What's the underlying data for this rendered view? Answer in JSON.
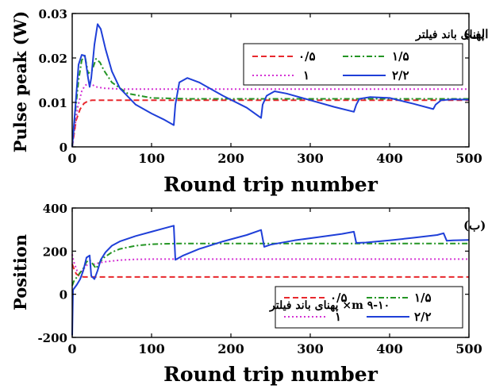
{
  "chart_data": [
    {
      "type": "line",
      "panel_label": "(الف)",
      "xlabel": "Round trip number",
      "ylabel": "Pulse peak (W)",
      "xlim": [
        0,
        500
      ],
      "ylim": [
        0,
        0.03
      ],
      "xticks": [
        "0",
        "100",
        "200",
        "300",
        "400",
        "500"
      ],
      "yticks": [
        "0",
        "0.01",
        "0.02",
        "0.03"
      ],
      "grid": false,
      "legend_title": "m ۹-۱۰× پهنای باند فیلتر",
      "legend_location": "upper-right",
      "series": [
        {
          "name": "۰/۵",
          "color": "#e8282d",
          "dash": "dashed",
          "x": [
            0,
            2,
            5,
            10,
            15,
            20,
            25,
            30,
            40,
            60,
            100,
            200,
            300,
            400,
            500
          ],
          "y": [
            0,
            0.0025,
            0.006,
            0.0085,
            0.0098,
            0.0103,
            0.0105,
            0.0105,
            0.0105,
            0.0105,
            0.0105,
            0.0105,
            0.0105,
            0.0105,
            0.0105
          ]
        },
        {
          "name": "۱",
          "color": "#d433d4",
          "dash": "dotted",
          "x": [
            0,
            3,
            7,
            12,
            16,
            20,
            25,
            30,
            40,
            60,
            100,
            200,
            300,
            400,
            500
          ],
          "y": [
            0,
            0.004,
            0.009,
            0.0125,
            0.0138,
            0.0142,
            0.014,
            0.0135,
            0.0132,
            0.013,
            0.013,
            0.013,
            0.013,
            0.013,
            0.013
          ]
        },
        {
          "name": "۱/۵",
          "color": "#249524",
          "dash": "dashdot",
          "x": [
            0,
            4,
            8,
            12,
            16,
            20,
            25,
            30,
            35,
            40,
            50,
            70,
            100,
            150,
            200,
            300,
            400,
            500
          ],
          "y": [
            0,
            0.008,
            0.015,
            0.0195,
            0.0205,
            0.0165,
            0.0172,
            0.0198,
            0.019,
            0.0172,
            0.0145,
            0.012,
            0.011,
            0.0108,
            0.0108,
            0.0108,
            0.0108,
            0.0108
          ]
        },
        {
          "name": "۲/۲",
          "color": "#1f3fd8",
          "dash": "solid",
          "x": [
            0,
            4,
            8,
            12,
            16,
            20,
            22,
            24,
            28,
            32,
            36,
            42,
            50,
            60,
            80,
            100,
            115,
            128,
            130,
            135,
            145,
            160,
            190,
            220,
            238,
            240,
            245,
            255,
            270,
            300,
            330,
            355,
            358,
            362,
            375,
            400,
            430,
            455,
            458,
            465,
            480,
            500
          ],
          "y": [
            0,
            0.009,
            0.0185,
            0.0207,
            0.0205,
            0.0155,
            0.0135,
            0.0155,
            0.023,
            0.0276,
            0.0265,
            0.022,
            0.017,
            0.0132,
            0.0095,
            0.0075,
            0.0062,
            0.0049,
            0.0095,
            0.0145,
            0.0155,
            0.0145,
            0.0115,
            0.0088,
            0.0065,
            0.0095,
            0.0115,
            0.0125,
            0.012,
            0.0105,
            0.009,
            0.0079,
            0.0095,
            0.0108,
            0.0112,
            0.011,
            0.0097,
            0.0085,
            0.0095,
            0.0105,
            0.0107,
            0.0106
          ]
        }
      ]
    },
    {
      "type": "line",
      "panel_label": "(ب)",
      "xlabel": "Round trip number",
      "ylabel": "Position",
      "xlim": [
        0,
        500
      ],
      "ylim": [
        -200,
        400
      ],
      "xticks": [
        "0",
        "100",
        "200",
        "300",
        "400",
        "500"
      ],
      "yticks": [
        "-200",
        "0",
        "200",
        "400"
      ],
      "grid": false,
      "legend_title": "m ۹-۱۰× پهنای باند فیلتر",
      "legend_location": "lower-right",
      "series": [
        {
          "name": "۰/۵",
          "color": "#e8282d",
          "dash": "dashed",
          "x": [
            0,
            2,
            5,
            10,
            15,
            20,
            25,
            30,
            40,
            60,
            100,
            200,
            300,
            400,
            500
          ],
          "y": [
            140,
            120,
            95,
            82,
            80,
            80,
            80,
            80,
            80,
            80,
            80,
            80,
            80,
            80,
            80
          ]
        },
        {
          "name": "۱",
          "color": "#d433d4",
          "dash": "dotted",
          "x": [
            0,
            2,
            6,
            10,
            14,
            18,
            22,
            26,
            30,
            40,
            60,
            80,
            100,
            150,
            200,
            300,
            400,
            500
          ],
          "y": [
            185,
            150,
            110,
            95,
            115,
            135,
            130,
            138,
            142,
            150,
            158,
            162,
            163,
            163,
            163,
            163,
            163,
            163
          ]
        },
        {
          "name": "۱/۵",
          "color": "#249524",
          "dash": "dashdot",
          "x": [
            0,
            2,
            6,
            10,
            14,
            18,
            22,
            26,
            30,
            35,
            40,
            50,
            60,
            80,
            100,
            130,
            160,
            200,
            300,
            400,
            500
          ],
          "y": [
            40,
            60,
            80,
            100,
            120,
            150,
            160,
            140,
            120,
            150,
            170,
            195,
            210,
            225,
            232,
            235,
            235,
            235,
            235,
            235,
            235
          ]
        },
        {
          "name": "۲/۲",
          "color": "#1f3fd8",
          "dash": "solid",
          "x": [
            0,
            1,
            3,
            6,
            10,
            14,
            18,
            22,
            24,
            28,
            32,
            36,
            42,
            50,
            60,
            80,
            100,
            115,
            128,
            130,
            140,
            160,
            190,
            220,
            238,
            242,
            250,
            280,
            310,
            340,
            355,
            358,
            370,
            400,
            430,
            460,
            468,
            472,
            480,
            500
          ],
          "y": [
            -190,
            20,
            30,
            45,
            70,
            110,
            170,
            180,
            85,
            70,
            110,
            160,
            195,
            225,
            245,
            270,
            290,
            305,
            318,
            160,
            180,
            210,
            245,
            275,
            298,
            220,
            230,
            250,
            265,
            280,
            290,
            238,
            240,
            250,
            262,
            275,
            283,
            248,
            250,
            252
          ]
        }
      ]
    }
  ]
}
